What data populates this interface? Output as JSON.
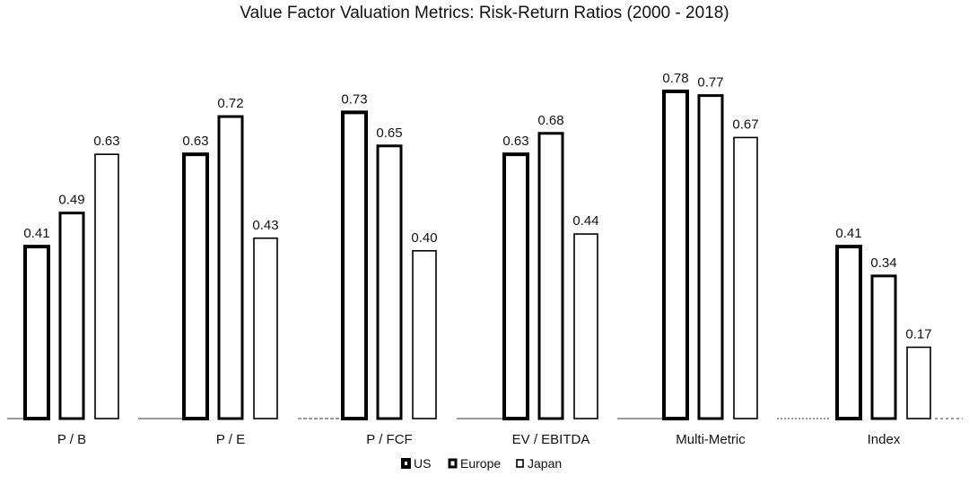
{
  "chart_data": {
    "type": "bar",
    "title": "Value Factor Valuation Metrics: Risk-Return Ratios (2000 - 2018)",
    "xlabel": "",
    "ylabel": "",
    "ylim": [
      0,
      0.8
    ],
    "grid": false,
    "legend_position": "bottom-center",
    "categories": [
      "P / B",
      "P / E",
      "P / FCF",
      "EV / EBITDA",
      "Multi-Metric",
      "Index"
    ],
    "series": [
      {
        "name": "US",
        "values": [
          0.41,
          0.63,
          0.73,
          0.63,
          0.78,
          0.41
        ]
      },
      {
        "name": "Europe",
        "values": [
          0.49,
          0.72,
          0.65,
          0.68,
          0.77,
          0.34
        ]
      },
      {
        "name": "Japan",
        "values": [
          0.63,
          0.43,
          0.4,
          0.44,
          0.67,
          0.17
        ]
      }
    ],
    "value_labels": [
      [
        "0.41",
        "0.63",
        "0.73",
        "0.63",
        "0.78",
        "0.41"
      ],
      [
        "0.49",
        "0.72",
        "0.65",
        "0.68",
        "0.77",
        "0.34"
      ],
      [
        "0.63",
        "0.43",
        "0.40",
        "0.44",
        "0.67",
        "0.17"
      ]
    ],
    "colors": {
      "bar_fill": "#ffffff",
      "bar_stroke": "#000000",
      "text": "#111111"
    }
  }
}
